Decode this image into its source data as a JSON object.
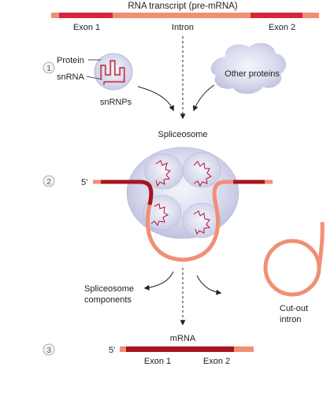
{
  "title": "RNA transcript (pre-mRNA)",
  "transcript": {
    "exon1": "Exon 1",
    "intron": "Intron",
    "exon2": "Exon 2"
  },
  "step1": {
    "number": "1",
    "protein_label": "Protein",
    "snrna_label": "snRNA",
    "snrnps_label": "snRNPs",
    "other_proteins_label": "Other proteins"
  },
  "step2": {
    "number": "2",
    "spliceosome_label": "Spliceosome",
    "five_prime": "5'",
    "components_label_1": "Spliceosome",
    "components_label_2": "components",
    "cutout_label_1": "Cut-out",
    "cutout_label_2": "intron"
  },
  "step3": {
    "number": "3",
    "mrna_label": "mRNA",
    "five_prime": "5'",
    "exon1": "Exon 1",
    "exon2": "Exon 2"
  },
  "colors": {
    "exon": "#d7263a",
    "exon_dark": "#a4161c",
    "intron": "#f08f74",
    "snrnp_fill": "#cfd0ea",
    "snrna_stroke": "#b3122e",
    "arrow": "#222222"
  }
}
